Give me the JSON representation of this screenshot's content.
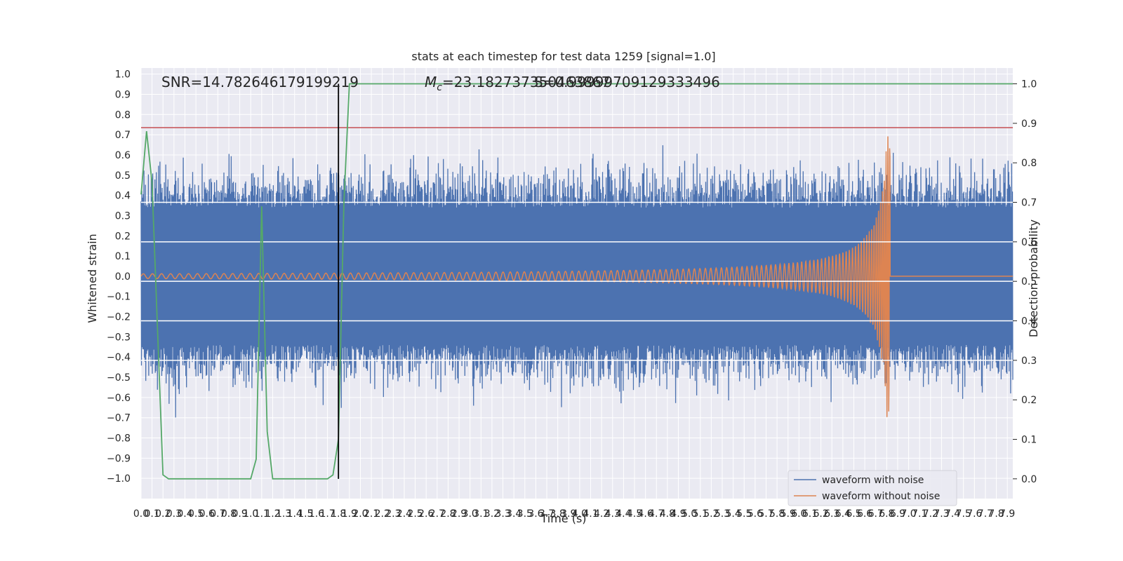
{
  "chart_data": {
    "type": "line",
    "title": "stats at each timestep for test data 1259 [signal=1.0]",
    "xlabel": "Time (s)",
    "ylabel": "Whitened strain",
    "ylabel_right": "Detection probability",
    "xlim": [
      0.0,
      7.95
    ],
    "ylim": [
      -1.1,
      1.03
    ],
    "ylim_right": [
      -0.05,
      1.04
    ],
    "x_ticks": [
      "0.0",
      "0.1",
      "0.2",
      "0.3",
      "0.4",
      "0.5",
      "0.6",
      "0.7",
      "0.8",
      "0.9",
      "1.0",
      "1.1",
      "1.2",
      "1.3",
      "1.4",
      "1.5",
      "1.6",
      "1.7",
      "1.8",
      "1.9",
      "2.0",
      "2.1",
      "2.2",
      "2.3",
      "2.4",
      "2.5",
      "2.6",
      "2.7",
      "2.8",
      "2.9",
      "3.0",
      "3.1",
      "3.2",
      "3.3",
      "3.4",
      "3.5",
      "3.6",
      "3.7",
      "3.8",
      "3.9",
      "4.0",
      "4.1",
      "4.2",
      "4.3",
      "4.4",
      "4.5",
      "4.6",
      "4.7",
      "4.8",
      "4.9",
      "5.0",
      "5.1",
      "5.2",
      "5.3",
      "5.4",
      "5.5",
      "5.6",
      "5.7",
      "5.8",
      "5.9",
      "6.0",
      "6.1",
      "6.2",
      "6.3",
      "6.4",
      "6.5",
      "6.6",
      "6.7",
      "6.8",
      "6.9",
      "7.0",
      "7.1",
      "7.2",
      "7.3",
      "7.4",
      "7.5",
      "7.6",
      "7.7",
      "7.8",
      "7.9"
    ],
    "y_ticks": [
      "1.0",
      "0.9",
      "0.8",
      "0.7",
      "0.6",
      "0.5",
      "0.4",
      "0.3",
      "0.2",
      "0.1",
      "0.0",
      "−0.1",
      "−0.2",
      "−0.3",
      "−0.4",
      "−0.5",
      "−0.6",
      "−0.7",
      "−0.8",
      "−0.9",
      "−1.0"
    ],
    "y_ticks_right": [
      "1.0",
      "0.9",
      "0.8",
      "0.7",
      "0.6",
      "0.5",
      "0.4",
      "0.3",
      "0.2",
      "0.1",
      "0.0"
    ],
    "annotations": {
      "snr": "SNR=14.782646179199219",
      "mc_symbol": "M",
      "mc_sub": "c",
      "mc_value": "=23.182737350463867",
      "overlap": "S=0.99999709129333496"
    },
    "series": [
      {
        "name": "waveform with noise",
        "color": "#4c72b0",
        "envelope": 0.34,
        "noise_std": 0.12,
        "n_points": 2400
      },
      {
        "name": "waveform without noise",
        "color": "#dd8452",
        "t_merger": 6.83,
        "f0": 12,
        "f_max": 60
      },
      {
        "name": "detection probability",
        "color": "#55a868",
        "axis": "right",
        "x": [
          0.0,
          0.05,
          0.1,
          0.15,
          0.2,
          0.25,
          0.3,
          0.35,
          0.4,
          0.45,
          0.5,
          0.55,
          0.6,
          0.65,
          0.7,
          0.75,
          0.8,
          0.85,
          0.9,
          0.95,
          1.0,
          1.05,
          1.1,
          1.15,
          1.2,
          1.25,
          1.3,
          1.35,
          1.4,
          1.45,
          1.5,
          1.55,
          1.6,
          1.65,
          1.7,
          1.75,
          1.8,
          1.85,
          1.9,
          1.95,
          2.0,
          7.95
        ],
        "y": [
          0.72,
          0.88,
          0.75,
          0.38,
          0.01,
          0.0,
          0.0,
          0.0,
          0.0,
          0.0,
          0.0,
          0.0,
          0.0,
          0.0,
          0.0,
          0.0,
          0.0,
          0.0,
          0.0,
          0.0,
          0.0,
          0.05,
          0.69,
          0.12,
          0.0,
          0.0,
          0.0,
          0.0,
          0.0,
          0.0,
          0.0,
          0.0,
          0.0,
          0.0,
          0.0,
          0.01,
          0.1,
          0.7,
          1.0,
          1.0,
          1.0,
          1.0
        ]
      }
    ],
    "hlines": [
      {
        "axis": "left",
        "y": 0.735,
        "color": "#c44e52"
      },
      {
        "axis": "right",
        "y": 0.7,
        "color": "#ffffff"
      },
      {
        "axis": "right",
        "y": 0.6,
        "color": "#ffffff"
      },
      {
        "axis": "right",
        "y": 0.5,
        "color": "#ffffff"
      },
      {
        "axis": "right",
        "y": 0.4,
        "color": "#ffffff"
      },
      {
        "axis": "right",
        "y": 0.3,
        "color": "#ffffff"
      }
    ],
    "vline": {
      "x": 1.8,
      "color": "#000000"
    },
    "legend_position": "lower-right",
    "grid": true,
    "colors": {
      "background": "#eaeaf2",
      "grid": "#ffffff"
    }
  }
}
